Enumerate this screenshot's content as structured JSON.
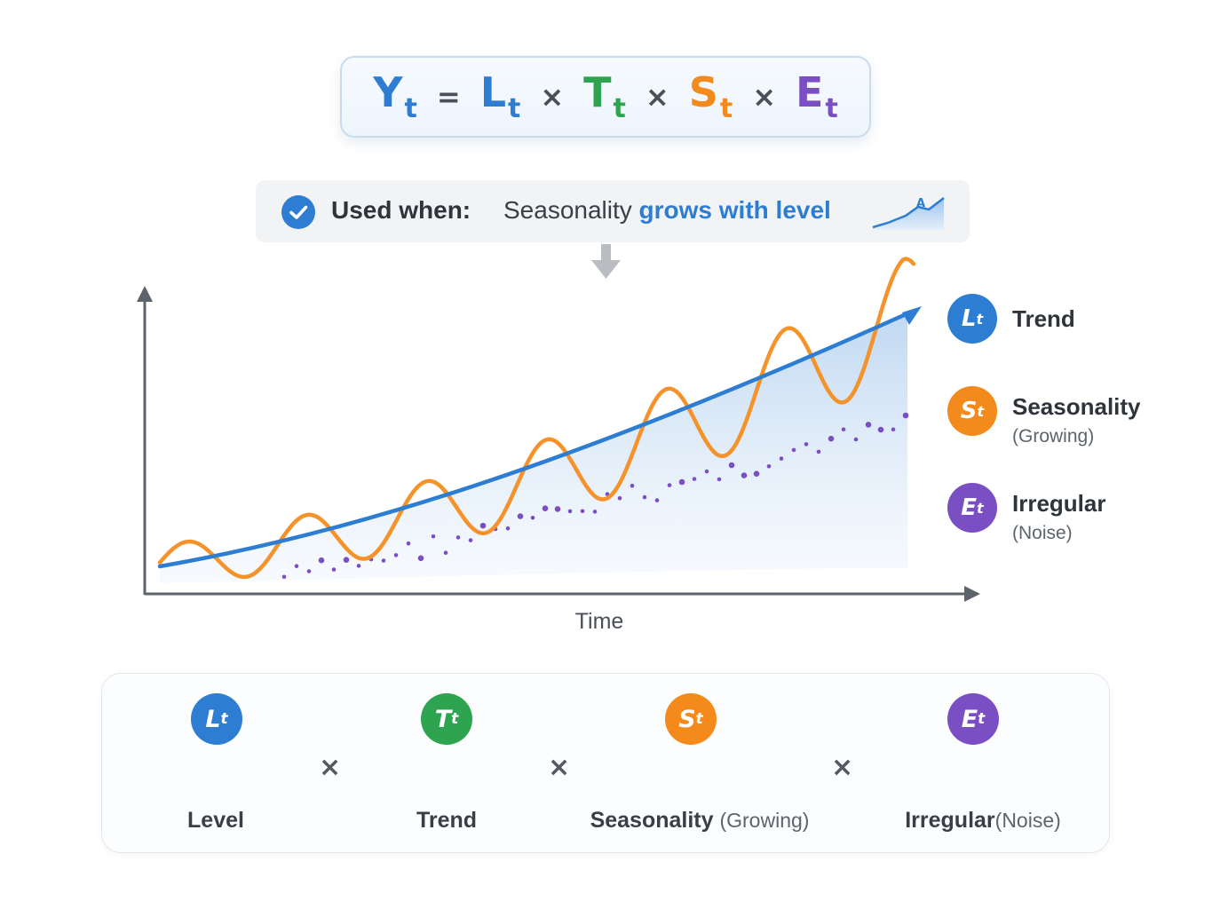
{
  "formula": {
    "y": {
      "base": "Y",
      "sub": "t"
    },
    "equals": "=",
    "l": {
      "base": "L",
      "sub": "t"
    },
    "t": {
      "base": "T",
      "sub": "t"
    },
    "s": {
      "base": "S",
      "sub": "t"
    },
    "e": {
      "base": "E",
      "sub": "t"
    },
    "times": "×"
  },
  "used_when": {
    "label": "Used when:",
    "text_plain": "Seasonality ",
    "text_highlight": "grows with level"
  },
  "chart": {
    "x_label": "Time"
  },
  "legend": [
    {
      "badge": "L",
      "sub": "t",
      "title": "Trend",
      "subtitle": "",
      "color": "#2d7dd2"
    },
    {
      "badge": "S",
      "sub": "t",
      "title": "Seasonality",
      "subtitle": "(Growing)",
      "color": "#f38a1b"
    },
    {
      "badge": "E",
      "sub": "t",
      "title": "Irregular",
      "subtitle": "(Noise)",
      "color": "#7b4fc4"
    }
  ],
  "components": [
    {
      "badge": "L",
      "sub": "t",
      "label": "Level",
      "label_extra": "",
      "color": "#2d7dd2"
    },
    {
      "badge": "T",
      "sub": "t",
      "label": "Trend",
      "label_extra": "",
      "color": "#2fa450"
    },
    {
      "badge": "S",
      "sub": "t",
      "label": "Seasonality",
      "label_extra": "(Growing)",
      "color": "#f38a1b"
    },
    {
      "badge": "E",
      "sub": "t",
      "label": "Irregular",
      "label_extra": "(Noise)",
      "color": "#7b4fc4"
    }
  ],
  "operator": "×",
  "colors": {
    "level": "#2d7dd2",
    "trend": "#2fa450",
    "seasonality": "#f38a1b",
    "irregular": "#7b4fc4"
  }
}
